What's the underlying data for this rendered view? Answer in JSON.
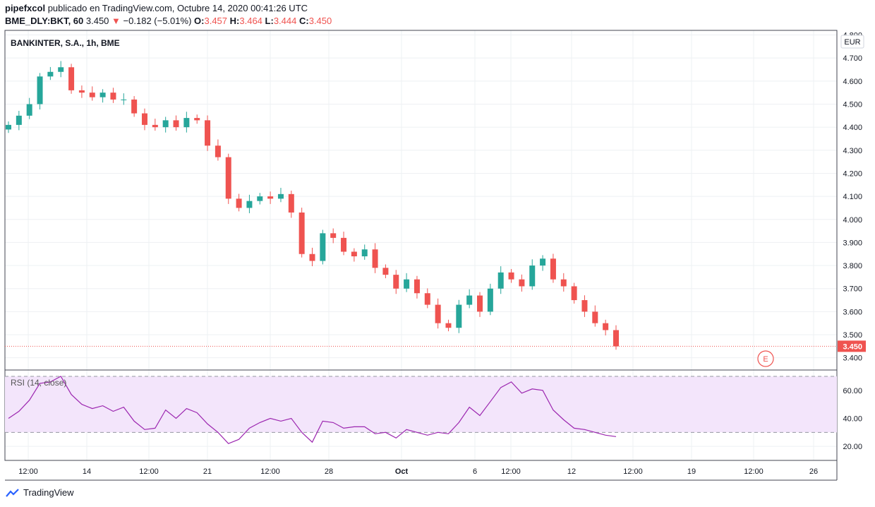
{
  "header": {
    "author": "pipefxcol",
    "published": "publicado en TradingView.com, Octubre 14, 2020 00:41:26 UTC",
    "symbol": "BME_DLY:BKT, 60",
    "price": "3.450",
    "change": "−0.182 (−5.01%)",
    "open_label": "O:",
    "open": "3.457",
    "high_label": "H:",
    "high": "3.464",
    "low_label": "L:",
    "low": "3.444",
    "close_label": "C:",
    "close": "3.450"
  },
  "footer": {
    "brand": "TradingView"
  },
  "colors": {
    "up": "#26a69a",
    "down": "#ef5350",
    "rsi": "#9c27b0",
    "rsi_band": "#f3e5fb",
    "grid": "#eef0f3"
  },
  "chart_data": [
    {
      "type": "candlestick",
      "title": "BANKINTER, S.A., 1h, BME",
      "currency": "EUR",
      "last_price": 3.45,
      "last_price_label": "3.450",
      "y_ticks": [
        "4.800",
        "4.700",
        "4.600",
        "4.500",
        "4.400",
        "4.300",
        "4.200",
        "4.100",
        "4.000",
        "3.900",
        "3.800",
        "3.700",
        "3.600",
        "3.500",
        "3.400"
      ],
      "ylim": [
        3.35,
        4.82
      ],
      "x_ticks": [
        "12:00",
        "14",
        "12:00",
        "21",
        "12:00",
        "28",
        "Oct",
        "6",
        "12:00",
        "12",
        "12:00",
        "19",
        "12:00",
        "26"
      ],
      "grid": true,
      "event_marker": "E",
      "series": [
        {
          "name": "close",
          "values": [
            4.41,
            4.45,
            4.5,
            4.62,
            4.64,
            4.66,
            4.56,
            4.55,
            4.53,
            4.55,
            4.52,
            4.52,
            4.46,
            4.41,
            4.4,
            4.43,
            4.4,
            4.44,
            4.43,
            4.32,
            4.27,
            4.09,
            4.05,
            4.08,
            4.1,
            4.09,
            4.11,
            4.03,
            3.85,
            3.82,
            3.94,
            3.92,
            3.86,
            3.84,
            3.87,
            3.79,
            3.76,
            3.7,
            3.74,
            3.68,
            3.63,
            3.55,
            3.53,
            3.63,
            3.67,
            3.6,
            3.7,
            3.77,
            3.74,
            3.71,
            3.8,
            3.83,
            3.74,
            3.71,
            3.65,
            3.6,
            3.55,
            3.52,
            3.45
          ]
        }
      ]
    },
    {
      "type": "line",
      "title": "RSI (14, close)",
      "y_ticks": [
        "60.00",
        "40.00",
        "20.00"
      ],
      "ylim": [
        10,
        74
      ],
      "band": [
        30,
        70
      ],
      "series": [
        {
          "name": "RSI",
          "values": [
            40,
            45,
            53,
            65,
            66,
            70,
            57,
            50,
            47,
            49,
            45,
            48,
            38,
            32,
            33,
            46,
            40,
            47,
            44,
            36,
            30,
            22,
            25,
            33,
            37,
            40,
            38,
            40,
            30,
            23,
            38,
            37,
            33,
            34,
            34,
            29,
            30,
            26,
            32,
            30,
            28,
            30,
            29,
            37,
            48,
            42,
            52,
            62,
            66,
            58,
            61,
            60,
            46,
            39,
            33,
            32,
            30,
            28,
            27
          ]
        }
      ]
    }
  ]
}
